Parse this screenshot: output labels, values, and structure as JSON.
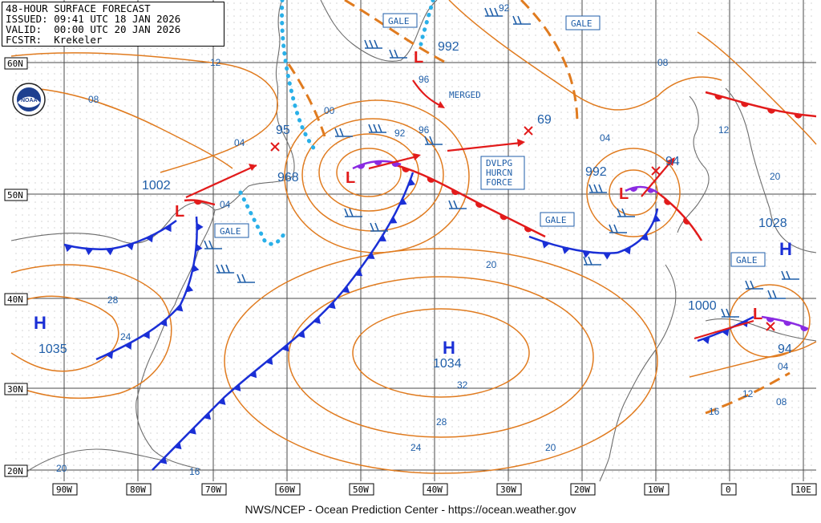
{
  "header": {
    "title": "48-HOUR SURFACE FORECAST",
    "issued": "ISSUED: 09:41 UTC 18 JAN 2026",
    "valid": "VALID:  00:00 UTC 20 JAN 2026",
    "forecaster": "FCSTR:  Krekeler"
  },
  "footer": "NWS/NCEP - Ocean Prediction Center - https://ocean.weather.gov",
  "logo_text": "NOAA",
  "lat_labels": [
    "60N",
    "50N",
    "40N",
    "30N",
    "20N"
  ],
  "lon_labels": [
    "90W",
    "80W",
    "70W",
    "60W",
    "50W",
    "40W",
    "30W",
    "20W",
    "10W",
    "0",
    "10E"
  ],
  "pressure_centers": [
    {
      "type": "L",
      "value": "1002"
    },
    {
      "type": "L",
      "value": "968"
    },
    {
      "type": "L",
      "value": "992"
    },
    {
      "type": "L",
      "value": "992"
    },
    {
      "type": "L",
      "value": "1000"
    },
    {
      "type": "H",
      "value": "1035"
    },
    {
      "type": "H",
      "value": "1034"
    },
    {
      "type": "H",
      "value": "1028"
    }
  ],
  "forecast_values": [
    "95",
    "69",
    "94",
    "94"
  ],
  "isobar_labels": [
    "12",
    "08",
    "04",
    "00",
    "92",
    "96",
    "92",
    "96",
    "08",
    "04",
    "12",
    "20",
    "04",
    "28",
    "24",
    "20",
    "20",
    "32",
    "28",
    "24",
    "16",
    "20",
    "16",
    "12",
    "08",
    "04"
  ],
  "boxed_labels": {
    "gale": "GALE",
    "merged": "MERGED",
    "dvlpg": [
      "DVLPG",
      "HURCN",
      "FORCE"
    ]
  },
  "colors": {
    "isobar": "#e07b1f",
    "cold_front": "#1a2fd6",
    "warm_front": "#e21b1b",
    "occluded": "#8a2be2",
    "track": "#e21b1b",
    "ice": "#2ab0e8",
    "land": "#6d6d6d",
    "grid": "#4a4a4a",
    "label": "#1f5ea8"
  }
}
